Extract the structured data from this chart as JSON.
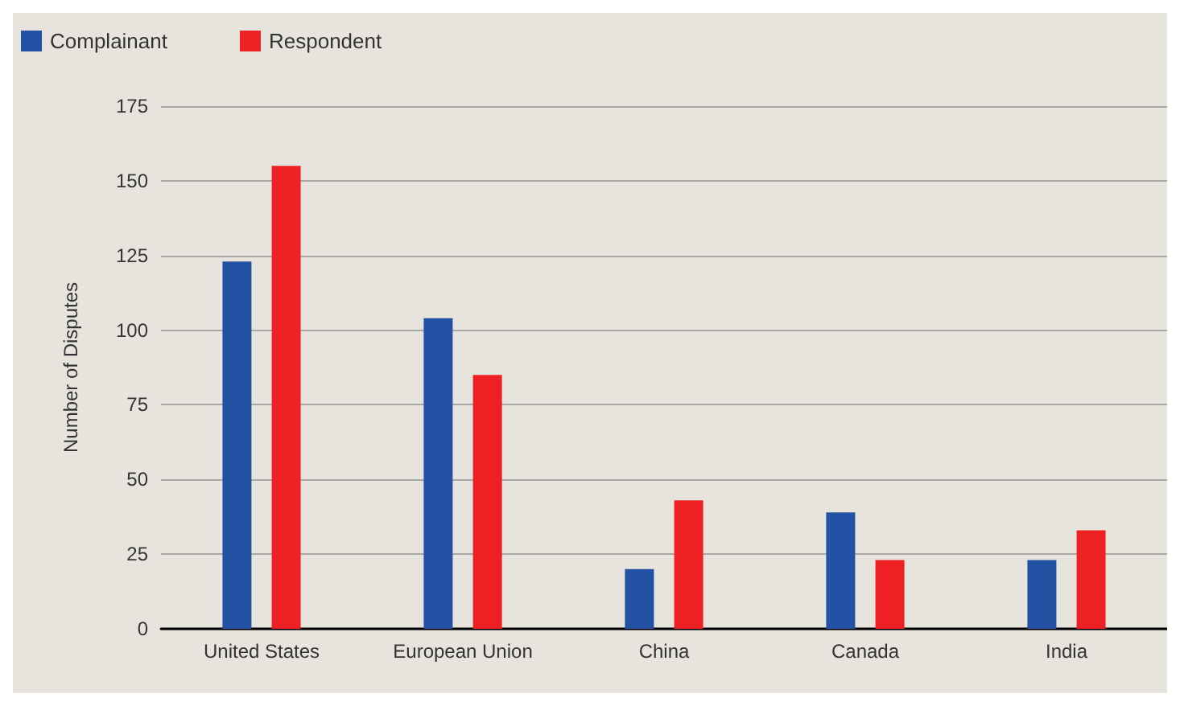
{
  "chart_data": {
    "type": "bar",
    "ylabel": "Number of Disputes",
    "categories": [
      "United States",
      "European Union",
      "China",
      "Canada",
      "India"
    ],
    "series": [
      {
        "name": "Complainant",
        "color": "#2352a4",
        "values": [
          123,
          104,
          20,
          39,
          23
        ]
      },
      {
        "name": "Respondent",
        "color": "#ee2024",
        "values": [
          155,
          85,
          43,
          23,
          33
        ]
      }
    ],
    "ylim": [
      0,
      175
    ],
    "yticks": [
      0,
      25,
      50,
      75,
      100,
      125,
      150,
      175
    ],
    "grid": "y",
    "legend": "top left"
  }
}
